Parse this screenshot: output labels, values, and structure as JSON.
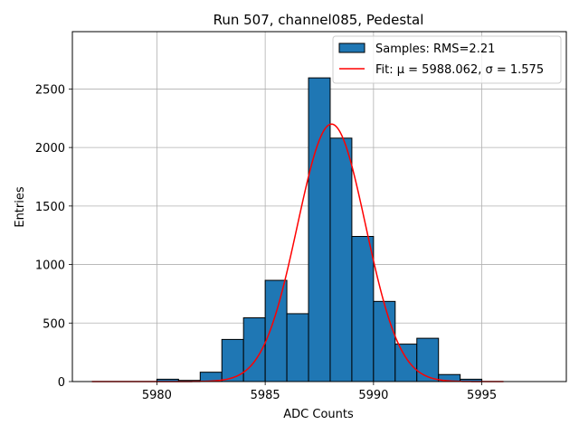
{
  "chart_data": {
    "type": "bar",
    "title": "Run 507, channel085, Pedestal",
    "xlabel": "ADC Counts",
    "ylabel": "Entries",
    "xlim": [
      5976.1,
      5998.9
    ],
    "ylim": [
      0,
      2990
    ],
    "xticks": [
      5980,
      5985,
      5990,
      5995
    ],
    "yticks": [
      0,
      500,
      1000,
      1500,
      2000,
      2500
    ],
    "grid": true,
    "legend_position": "top-right",
    "bins": [
      {
        "x0": 5980,
        "x1": 5981,
        "count": 20
      },
      {
        "x0": 5981,
        "x1": 5982,
        "count": 10
      },
      {
        "x0": 5982,
        "x1": 5983,
        "count": 80
      },
      {
        "x0": 5983,
        "x1": 5984,
        "count": 360
      },
      {
        "x0": 5984,
        "x1": 5985,
        "count": 545
      },
      {
        "x0": 5985,
        "x1": 5986,
        "count": 865
      },
      {
        "x0": 5986,
        "x1": 5987,
        "count": 580
      },
      {
        "x0": 5987,
        "x1": 5988,
        "count": 2595
      },
      {
        "x0": 5988,
        "x1": 5989,
        "count": 2080
      },
      {
        "x0": 5989,
        "x1": 5990,
        "count": 1240
      },
      {
        "x0": 5990,
        "x1": 5991,
        "count": 685
      },
      {
        "x0": 5991,
        "x1": 5992,
        "count": 320
      },
      {
        "x0": 5992,
        "x1": 5993,
        "count": 370
      },
      {
        "x0": 5993,
        "x1": 5994,
        "count": 60
      },
      {
        "x0": 5994,
        "x1": 5995,
        "count": 20
      }
    ],
    "fit": {
      "type": "gaussian",
      "mu": 5988.062,
      "sigma": 1.575,
      "amplitude": 2200,
      "x_range": [
        5977,
        5996
      ]
    },
    "series": [
      {
        "name": "Samples: RMS=2.21",
        "color": "#1f77b4",
        "kind": "histogram"
      },
      {
        "name": "Fit: μ = 5988.062, σ = 1.575",
        "color": "#ff0000",
        "kind": "line"
      }
    ]
  }
}
